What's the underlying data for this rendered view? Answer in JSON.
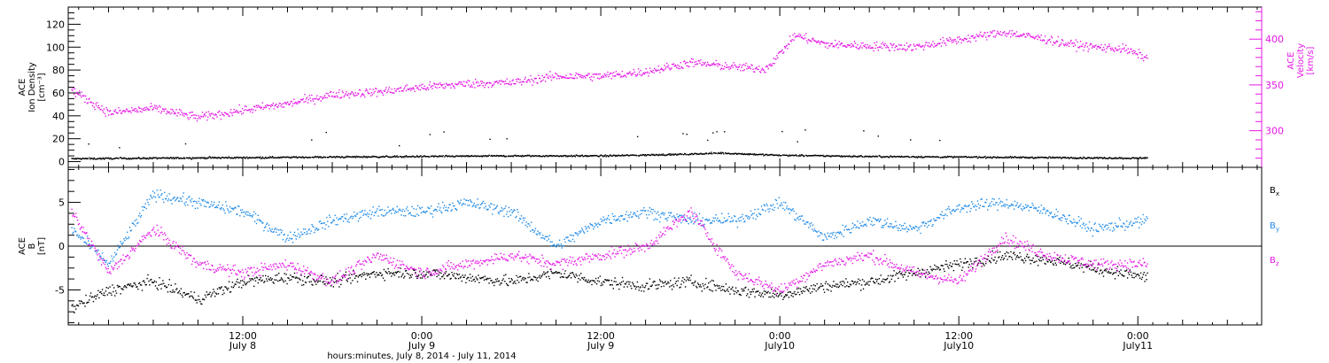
{
  "chart_data": {
    "type": "scatter",
    "xlabel": "hours:minutes, July  8, 2014 - July 11, 2014",
    "x_ticks": [
      {
        "line1": "12:00",
        "line2": "July 8",
        "hour": 12
      },
      {
        "line1": "0:00",
        "line2": "July 9",
        "hour": 24
      },
      {
        "line1": "12:00",
        "line2": "July 9",
        "hour": 36
      },
      {
        "line1": "0:00",
        "line2": "July10",
        "hour": 48
      },
      {
        "line1": "12:00",
        "line2": "July10",
        "hour": 60
      },
      {
        "line1": "0:00",
        "line2": "July11",
        "hour": 72
      }
    ],
    "xlim_hours": [
      0.3,
      80.3
    ],
    "panels": [
      {
        "id": "plasma",
        "left_axis": {
          "label_lines": [
            "ACE",
            "Ion Density",
            "[cm⁻³]"
          ],
          "ylim": [
            -5,
            135
          ],
          "ticks": [
            0,
            20,
            40,
            60,
            80,
            100,
            120
          ],
          "color": "#000000"
        },
        "right_axis": {
          "label_lines": [
            "ACE",
            "Velocity",
            "[km/s]"
          ],
          "ylim": [
            260,
            435
          ],
          "ticks": [
            300,
            350,
            400
          ],
          "color": "#e617e6"
        },
        "series": [
          {
            "key": "density",
            "axis": "left",
            "color": "#000000",
            "points": [
              [
                0.5,
                3
              ],
              [
                6,
                3.5
              ],
              [
                12,
                4
              ],
              [
                18,
                4.5
              ],
              [
                24,
                5
              ],
              [
                30,
                5.5
              ],
              [
                36,
                5.5
              ],
              [
                42,
                7
              ],
              [
                44,
                8
              ],
              [
                48,
                6
              ],
              [
                54,
                5
              ],
              [
                60,
                4.5
              ],
              [
                66,
                4
              ],
              [
                72,
                3.5
              ],
              [
                72.6,
                4
              ]
            ]
          },
          {
            "key": "velocity",
            "axis": "right",
            "color": "#e617e6",
            "points": [
              [
                0.5,
                345
              ],
              [
                3,
                320
              ],
              [
                6,
                325
              ],
              [
                9,
                315
              ],
              [
                12,
                323
              ],
              [
                15,
                330
              ],
              [
                18,
                340
              ],
              [
                21,
                343
              ],
              [
                24,
                348
              ],
              [
                27,
                352
              ],
              [
                30,
                353
              ],
              [
                33,
                360
              ],
              [
                36,
                360
              ],
              [
                39,
                365
              ],
              [
                42,
                375
              ],
              [
                45,
                370
              ],
              [
                47,
                368
              ],
              [
                48,
                385
              ],
              [
                49,
                405
              ],
              [
                51,
                395
              ],
              [
                54,
                393
              ],
              [
                57,
                392
              ],
              [
                60,
                400
              ],
              [
                63,
                408
              ],
              [
                66,
                400
              ],
              [
                67,
                396
              ],
              [
                69,
                392
              ],
              [
                71,
                390
              ],
              [
                72.6,
                380
              ]
            ]
          }
        ]
      },
      {
        "id": "magnetic",
        "left_axis": {
          "label_lines": [
            "ACE",
            "B",
            "[nT]"
          ],
          "ylim": [
            -9,
            9
          ],
          "ticks": [
            -5,
            0,
            5
          ],
          "color": "#000000"
        },
        "zero_line": true,
        "series": [
          {
            "key": "Bx",
            "name": "B",
            "sub": "x",
            "color": "#000000",
            "points": [
              [
                0.5,
                -7
              ],
              [
                3,
                -5
              ],
              [
                6,
                -4
              ],
              [
                9,
                -6
              ],
              [
                12,
                -4
              ],
              [
                15,
                -3.5
              ],
              [
                18,
                -4
              ],
              [
                21,
                -3
              ],
              [
                24,
                -3
              ],
              [
                27,
                -3.5
              ],
              [
                30,
                -4
              ],
              [
                33,
                -3
              ],
              [
                36,
                -4
              ],
              [
                39,
                -4.5
              ],
              [
                42,
                -4
              ],
              [
                45,
                -5
              ],
              [
                48,
                -5.5
              ],
              [
                51,
                -4.5
              ],
              [
                54,
                -4
              ],
              [
                57,
                -3
              ],
              [
                60,
                -2
              ],
              [
                63,
                -1
              ],
              [
                66,
                -1.5
              ],
              [
                69,
                -2.5
              ],
              [
                72.6,
                -3.5
              ]
            ]
          },
          {
            "key": "By",
            "name": "B",
            "sub": "y",
            "color": "#1f8ae6",
            "points": [
              [
                0.5,
                2
              ],
              [
                3,
                -2
              ],
              [
                6,
                6
              ],
              [
                9,
                5
              ],
              [
                12,
                4
              ],
              [
                15,
                1
              ],
              [
                18,
                3
              ],
              [
                21,
                4
              ],
              [
                24,
                4
              ],
              [
                27,
                5
              ],
              [
                30,
                4
              ],
              [
                33,
                0
              ],
              [
                36,
                3
              ],
              [
                39,
                4
              ],
              [
                42,
                3
              ],
              [
                45,
                3
              ],
              [
                48,
                5
              ],
              [
                51,
                1
              ],
              [
                54,
                3
              ],
              [
                57,
                2
              ],
              [
                60,
                4.5
              ],
              [
                63,
                5
              ],
              [
                66,
                4
              ],
              [
                69,
                2
              ],
              [
                72.6,
                3
              ]
            ]
          },
          {
            "key": "Bz",
            "name": "B",
            "sub": "z",
            "color": "#e617e6",
            "points": [
              [
                0.5,
                4
              ],
              [
                3,
                -3
              ],
              [
                6,
                2
              ],
              [
                9,
                -2
              ],
              [
                12,
                -3
              ],
              [
                15,
                -2
              ],
              [
                18,
                -4
              ],
              [
                21,
                -1
              ],
              [
                24,
                -3
              ],
              [
                27,
                -2
              ],
              [
                30,
                -1
              ],
              [
                33,
                -2
              ],
              [
                36,
                -1
              ],
              [
                39,
                0
              ],
              [
                42,
                4
              ],
              [
                45,
                -3
              ],
              [
                48,
                -5
              ],
              [
                51,
                -2
              ],
              [
                54,
                -1
              ],
              [
                57,
                -3
              ],
              [
                60,
                -4
              ],
              [
                63,
                1
              ],
              [
                66,
                -1
              ],
              [
                69,
                -2
              ],
              [
                72.6,
                -2
              ]
            ]
          }
        ]
      }
    ]
  }
}
